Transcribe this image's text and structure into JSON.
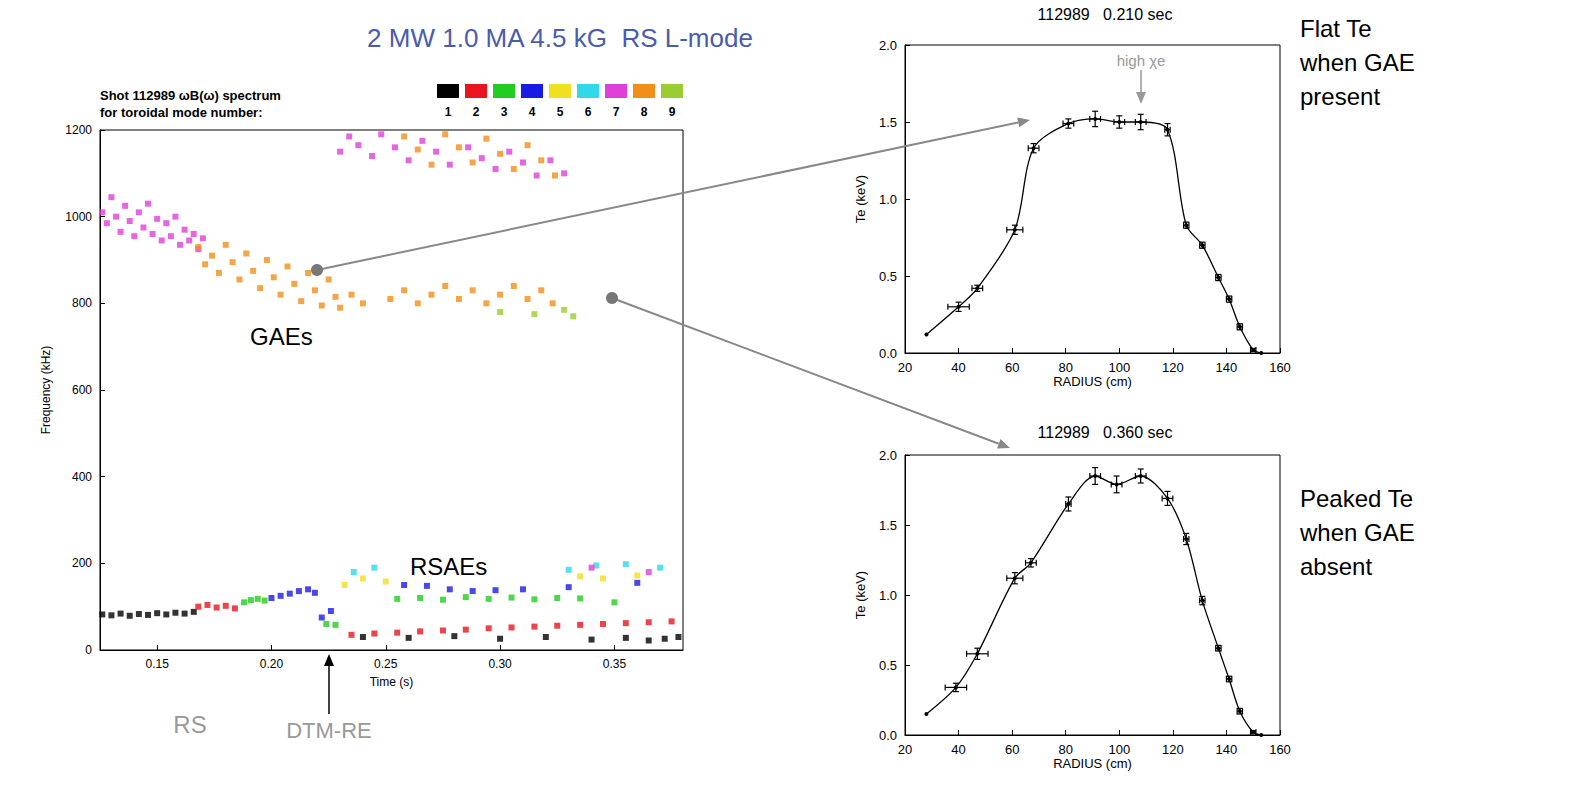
{
  "chart_data": [
    {
      "type": "scatter",
      "title": "2 MW 1.0 MA 4.5 kG  RS L-mode",
      "subtitle": "Shot 112989 ωB(ω) spectrum\nfor toroidal mode number:",
      "x_label": "Time (s)",
      "y_label": "Frequency (kHz)",
      "xlim": [
        0.125,
        0.38
      ],
      "xticks": [
        0.15,
        {
          "value": 0.2,
          "label": "0.20"
        },
        0.25,
        {
          "value": 0.3,
          "label": "0.30"
        },
        0.35
      ],
      "ylim": [
        0,
        1200
      ],
      "yticks": [
        0,
        200,
        400,
        600,
        800,
        1000,
        1200
      ],
      "legend": "top right",
      "grid": false,
      "marker": "square",
      "annotations": [
        "GAEs",
        "RSAEs",
        "RS",
        "DTM-RE"
      ],
      "series": [
        {
          "name": "1",
          "color": "#000000",
          "values": [
            [
              0.126,
              82
            ],
            [
              0.13,
              80
            ],
            [
              0.134,
              84
            ],
            [
              0.138,
              79
            ],
            [
              0.142,
              83
            ],
            [
              0.146,
              81
            ],
            [
              0.15,
              85
            ],
            [
              0.154,
              82
            ],
            [
              0.158,
              86
            ],
            [
              0.162,
              84
            ],
            [
              0.166,
              88
            ],
            [
              0.24,
              30
            ],
            [
              0.26,
              28
            ],
            [
              0.28,
              32
            ],
            [
              0.3,
              26
            ],
            [
              0.32,
              30
            ],
            [
              0.34,
              24
            ],
            [
              0.355,
              28
            ],
            [
              0.365,
              22
            ],
            [
              0.372,
              26
            ],
            [
              0.378,
              30
            ]
          ]
        },
        {
          "name": "2",
          "color": "#e8141e",
          "values": [
            [
              0.168,
              100
            ],
            [
              0.172,
              104
            ],
            [
              0.176,
              98
            ],
            [
              0.18,
              102
            ],
            [
              0.184,
              96
            ],
            [
              0.235,
              35
            ],
            [
              0.245,
              38
            ],
            [
              0.255,
              40
            ],
            [
              0.265,
              43
            ],
            [
              0.275,
              45
            ],
            [
              0.285,
              47
            ],
            [
              0.295,
              50
            ],
            [
              0.305,
              52
            ],
            [
              0.315,
              54
            ],
            [
              0.325,
              56
            ],
            [
              0.335,
              58
            ],
            [
              0.345,
              60
            ],
            [
              0.355,
              62
            ],
            [
              0.365,
              64
            ],
            [
              0.375,
              66
            ]
          ]
        },
        {
          "name": "3",
          "color": "#22cc22",
          "values": [
            [
              0.188,
              110
            ],
            [
              0.191,
              115
            ],
            [
              0.194,
              118
            ],
            [
              0.197,
              114
            ],
            [
              0.224,
              60
            ],
            [
              0.228,
              58
            ],
            [
              0.255,
              118
            ],
            [
              0.265,
              120
            ],
            [
              0.275,
              116
            ],
            [
              0.285,
              122
            ],
            [
              0.295,
              118
            ],
            [
              0.305,
              121
            ],
            [
              0.315,
              117
            ],
            [
              0.325,
              120
            ],
            [
              0.335,
              119
            ],
            [
              0.35,
              110
            ]
          ]
        },
        {
          "name": "4",
          "color": "#1a1ae6",
          "values": [
            [
              0.2,
              120
            ],
            [
              0.204,
              125
            ],
            [
              0.208,
              130
            ],
            [
              0.212,
              136
            ],
            [
              0.216,
              140
            ],
            [
              0.219,
              132
            ],
            [
              0.222,
              75
            ],
            [
              0.226,
              90
            ],
            [
              0.258,
              150
            ],
            [
              0.268,
              148
            ],
            [
              0.278,
              140
            ],
            [
              0.288,
              136
            ],
            [
              0.298,
              138
            ],
            [
              0.31,
              140
            ],
            [
              0.33,
              145
            ],
            [
              0.36,
              155
            ]
          ]
        },
        {
          "name": "5",
          "color": "#f0e020",
          "values": [
            [
              0.232,
              150
            ],
            [
              0.24,
              165
            ],
            [
              0.25,
              158
            ],
            [
              0.335,
              170
            ],
            [
              0.345,
              165
            ],
            [
              0.36,
              172
            ]
          ]
        },
        {
          "name": "6",
          "color": "#30d8e8",
          "values": [
            [
              0.236,
              180
            ],
            [
              0.245,
              190
            ],
            [
              0.33,
              185
            ],
            [
              0.342,
              195
            ],
            [
              0.355,
              198
            ],
            [
              0.37,
              190
            ]
          ]
        },
        {
          "name": "7",
          "color": "#e040d8",
          "values": [
            [
              0.126,
              1010
            ],
            [
              0.128,
              985
            ],
            [
              0.13,
              1045
            ],
            [
              0.132,
              1000
            ],
            [
              0.134,
              965
            ],
            [
              0.136,
              1025
            ],
            [
              0.138,
              990
            ],
            [
              0.14,
              955
            ],
            [
              0.142,
              1010
            ],
            [
              0.144,
              975
            ],
            [
              0.146,
              1030
            ],
            [
              0.148,
              960
            ],
            [
              0.15,
              995
            ],
            [
              0.152,
              945
            ],
            [
              0.154,
              985
            ],
            [
              0.156,
              955
            ],
            [
              0.158,
              1000
            ],
            [
              0.16,
              935
            ],
            [
              0.162,
              970
            ],
            [
              0.164,
              945
            ],
            [
              0.166,
              960
            ],
            [
              0.168,
              925
            ],
            [
              0.17,
              950
            ],
            [
              0.23,
              1150
            ],
            [
              0.234,
              1185
            ],
            [
              0.238,
              1165
            ],
            [
              0.244,
              1140
            ],
            [
              0.248,
              1190
            ],
            [
              0.254,
              1160
            ],
            [
              0.26,
              1130
            ],
            [
              0.266,
              1175
            ],
            [
              0.272,
              1150
            ],
            [
              0.278,
              1120
            ],
            [
              0.286,
              1160
            ],
            [
              0.292,
              1135
            ],
            [
              0.298,
              1110
            ],
            [
              0.304,
              1150
            ],
            [
              0.31,
              1125
            ],
            [
              0.316,
              1095
            ],
            [
              0.322,
              1130
            ],
            [
              0.328,
              1100
            ],
            [
              0.34,
              190
            ],
            [
              0.365,
              180
            ]
          ]
        },
        {
          "name": "8",
          "color": "#f0901a",
          "values": [
            [
              0.168,
              930
            ],
            [
              0.171,
              890
            ],
            [
              0.174,
              910
            ],
            [
              0.177,
              870
            ],
            [
              0.18,
              935
            ],
            [
              0.183,
              895
            ],
            [
              0.186,
              855
            ],
            [
              0.189,
              915
            ],
            [
              0.192,
              875
            ],
            [
              0.195,
              835
            ],
            [
              0.198,
              900
            ],
            [
              0.201,
              860
            ],
            [
              0.204,
              820
            ],
            [
              0.207,
              885
            ],
            [
              0.21,
              845
            ],
            [
              0.213,
              805
            ],
            [
              0.216,
              870
            ],
            [
              0.219,
              830
            ],
            [
              0.222,
              795
            ],
            [
              0.225,
              855
            ],
            [
              0.228,
              815
            ],
            [
              0.23,
              790
            ],
            [
              0.235,
              820
            ],
            [
              0.24,
              800
            ],
            [
              0.252,
              810
            ],
            [
              0.258,
              830
            ],
            [
              0.264,
              800
            ],
            [
              0.27,
              820
            ],
            [
              0.276,
              840
            ],
            [
              0.282,
              810
            ],
            [
              0.288,
              830
            ],
            [
              0.294,
              800
            ],
            [
              0.3,
              820
            ],
            [
              0.306,
              840
            ],
            [
              0.312,
              810
            ],
            [
              0.318,
              830
            ],
            [
              0.323,
              800
            ],
            [
              0.258,
              1185
            ],
            [
              0.264,
              1155
            ],
            [
              0.27,
              1120
            ],
            [
              0.276,
              1190
            ],
            [
              0.282,
              1160
            ],
            [
              0.288,
              1125
            ],
            [
              0.294,
              1180
            ],
            [
              0.3,
              1145
            ],
            [
              0.306,
              1110
            ],
            [
              0.312,
              1165
            ],
            [
              0.318,
              1130
            ],
            [
              0.324,
              1095
            ]
          ]
        },
        {
          "name": "9",
          "color": "#9acd32",
          "values": [
            [
              0.3,
              780
            ],
            [
              0.315,
              775
            ],
            [
              0.328,
              785
            ],
            [
              0.332,
              770
            ]
          ]
        }
      ]
    },
    {
      "type": "line",
      "title": "112989   0.210 sec",
      "x_label": "RADIUS (cm)",
      "y_label": "Te (keV)",
      "xlim": [
        20,
        160
      ],
      "xticks": [
        20,
        40,
        60,
        80,
        100,
        120,
        140,
        160
      ],
      "ylim": [
        0,
        2
      ],
      "yticks": [
        {
          "value": 0,
          "label": "0.0"
        },
        0.5,
        {
          "value": 1,
          "label": "1.0"
        },
        1.5,
        {
          "value": 2,
          "label": "2.0"
        }
      ],
      "grid": false,
      "color": "#000000",
      "marker": "circle",
      "line_style": "solid",
      "annotations": [
        "high χe",
        "Flat Te when GAE present"
      ],
      "x": [
        28,
        40,
        47,
        61,
        68,
        81,
        91,
        100,
        108,
        118,
        125,
        131,
        137,
        141,
        145,
        150,
        153
      ],
      "values": [
        0.12,
        0.3,
        0.42,
        0.8,
        1.33,
        1.49,
        1.52,
        1.5,
        1.5,
        1.45,
        0.83,
        0.7,
        0.49,
        0.35,
        0.17,
        0.02,
        0.0
      ],
      "x_err": [
        0,
        4,
        2,
        3,
        2,
        2,
        2,
        2,
        2,
        1,
        1,
        1,
        1,
        1,
        1,
        1,
        0
      ],
      "y_err": [
        0,
        0.03,
        0.02,
        0.03,
        0.03,
        0.03,
        0.05,
        0.04,
        0.05,
        0.04,
        0.02,
        0.02,
        0.02,
        0.02,
        0.02,
        0.01,
        0
      ]
    },
    {
      "type": "line",
      "title": "112989   0.360 sec",
      "x_label": "RADIUS (cm)",
      "y_label": "Te (keV)",
      "xlim": [
        20,
        160
      ],
      "xticks": [
        20,
        40,
        60,
        80,
        100,
        120,
        140,
        160
      ],
      "ylim": [
        0,
        2
      ],
      "yticks": [
        {
          "value": 0,
          "label": "0.0"
        },
        0.5,
        {
          "value": 1,
          "label": "1.0"
        },
        1.5,
        {
          "value": 2,
          "label": "2.0"
        }
      ],
      "grid": false,
      "color": "#000000",
      "marker": "circle",
      "line_style": "solid",
      "annotations": [
        "Peaked Te when GAE absent"
      ],
      "x": [
        28,
        39,
        47,
        61,
        67,
        81,
        91,
        99,
        108,
        118,
        125,
        131,
        137,
        141,
        145,
        150,
        153
      ],
      "values": [
        0.15,
        0.34,
        0.58,
        1.12,
        1.23,
        1.65,
        1.85,
        1.79,
        1.85,
        1.69,
        1.4,
        0.96,
        0.62,
        0.4,
        0.17,
        0.02,
        0.0
      ],
      "x_err": [
        0,
        4,
        4,
        3,
        2,
        1,
        2,
        2,
        2,
        2,
        1,
        1,
        1,
        1,
        1,
        1,
        0
      ],
      "y_err": [
        0,
        0.03,
        0.04,
        0.04,
        0.03,
        0.05,
        0.06,
        0.06,
        0.05,
        0.05,
        0.04,
        0.03,
        0.02,
        0.02,
        0.02,
        0.01,
        0
      ]
    }
  ]
}
